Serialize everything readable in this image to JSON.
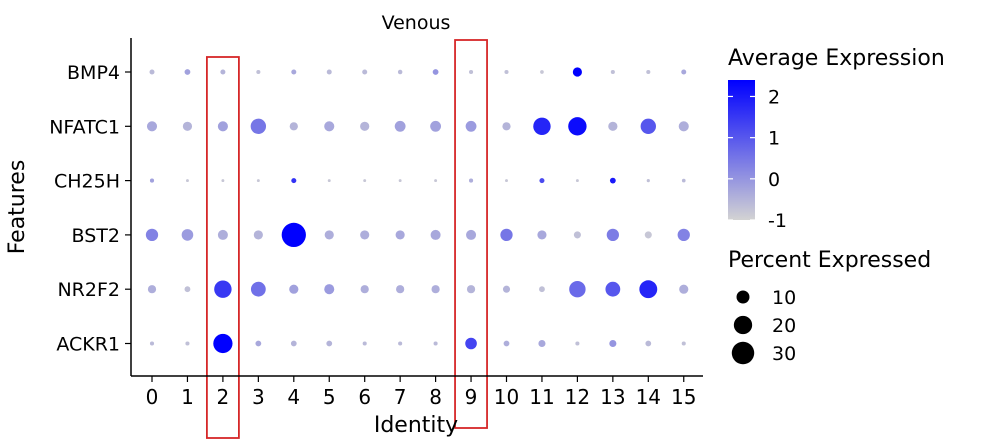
{
  "chart_data": {
    "type": "dotplot",
    "title": "Venous",
    "xlabel": "Identity",
    "ylabel": "Features",
    "categories": [
      "0",
      "1",
      "2",
      "3",
      "4",
      "5",
      "6",
      "7",
      "8",
      "9",
      "10",
      "11",
      "12",
      "13",
      "14",
      "15"
    ],
    "features": [
      "BMP4",
      "NFATC1",
      "CH25H",
      "BST2",
      "NR2F2",
      "ACKR1"
    ],
    "highlighted_categories": [
      "2",
      "9"
    ],
    "highlight_color": "#d62728",
    "color_low": "#d3d3d3",
    "color_high": "#0000ff",
    "color_legend": {
      "title": "Average Expression",
      "ticks": [
        "2",
        "1",
        "0",
        "-1"
      ],
      "range": [
        -1,
        2.4
      ]
    },
    "size_legend": {
      "title": "Percent Expressed",
      "ticks": [
        "10",
        "20",
        "30"
      ],
      "values": [
        10,
        20,
        30
      ]
    },
    "points": {
      "BMP4": {
        "avg_exp": [
          -0.6,
          -0.2,
          -0.5,
          -0.7,
          -0.3,
          -0.6,
          -0.6,
          -0.6,
          0.0,
          -0.7,
          -0.7,
          -0.8,
          2.4,
          -0.7,
          -0.7,
          -0.3
        ],
        "pct": [
          1.5,
          2,
          1.5,
          1,
          1.5,
          1.5,
          1.5,
          1.2,
          2,
          1,
          1,
          0.8,
          5,
          1,
          1,
          1.5
        ]
      },
      "NFATC1": {
        "avg_exp": [
          -0.3,
          -0.5,
          -0.2,
          0.5,
          -0.5,
          -0.3,
          -0.5,
          -0.2,
          -0.2,
          -0.1,
          -0.5,
          1.8,
          2.2,
          -0.5,
          1.0,
          -0.4
        ],
        "pct": [
          6,
          5,
          6,
          14,
          4,
          6,
          5,
          7,
          7,
          7,
          4,
          18,
          20,
          5,
          14,
          6
        ]
      },
      "CH25H": {
        "avg_exp": [
          -0.2,
          -0.8,
          -0.8,
          -0.8,
          1.6,
          -0.8,
          -0.8,
          -0.8,
          -0.8,
          -0.4,
          -0.8,
          1.2,
          -0.8,
          2.0,
          -0.7,
          -0.6
        ],
        "pct": [
          1,
          0.5,
          0.5,
          0.5,
          1.5,
          0.5,
          0.5,
          0.5,
          0.5,
          1,
          0.5,
          1.5,
          0.5,
          2,
          0.6,
          0.8
        ]
      },
      "BST2": {
        "avg_exp": [
          0.3,
          -0.1,
          -0.4,
          -0.5,
          2.4,
          -0.4,
          -0.4,
          -0.3,
          -0.3,
          -0.3,
          0.5,
          -0.3,
          -0.7,
          0.4,
          -0.8,
          0.3
        ],
        "pct": [
          9,
          8,
          6,
          5,
          35,
          5,
          5,
          5,
          6,
          6,
          9,
          5,
          3,
          9,
          3,
          9
        ]
      },
      "NR2F2": {
        "avg_exp": [
          -0.4,
          -0.7,
          1.5,
          0.6,
          -0.2,
          -0.1,
          -0.4,
          -0.4,
          -0.4,
          -0.5,
          -0.5,
          -0.7,
          0.7,
          1.0,
          1.8,
          -0.4
        ],
        "pct": [
          4,
          2,
          18,
          13,
          5,
          6,
          4,
          4,
          4,
          4,
          3,
          2,
          16,
          13,
          19,
          5
        ]
      },
      "ACKR1": {
        "avg_exp": [
          -0.6,
          -0.7,
          2.4,
          -0.3,
          -0.5,
          -0.5,
          -0.6,
          -0.6,
          -0.6,
          1.3,
          -0.4,
          -0.3,
          -0.7,
          0.0,
          -0.6,
          -0.7
        ],
        "pct": [
          1,
          1,
          22,
          2,
          2,
          2,
          1,
          1,
          1,
          8,
          2,
          3,
          1,
          3,
          2,
          1
        ]
      }
    }
  }
}
